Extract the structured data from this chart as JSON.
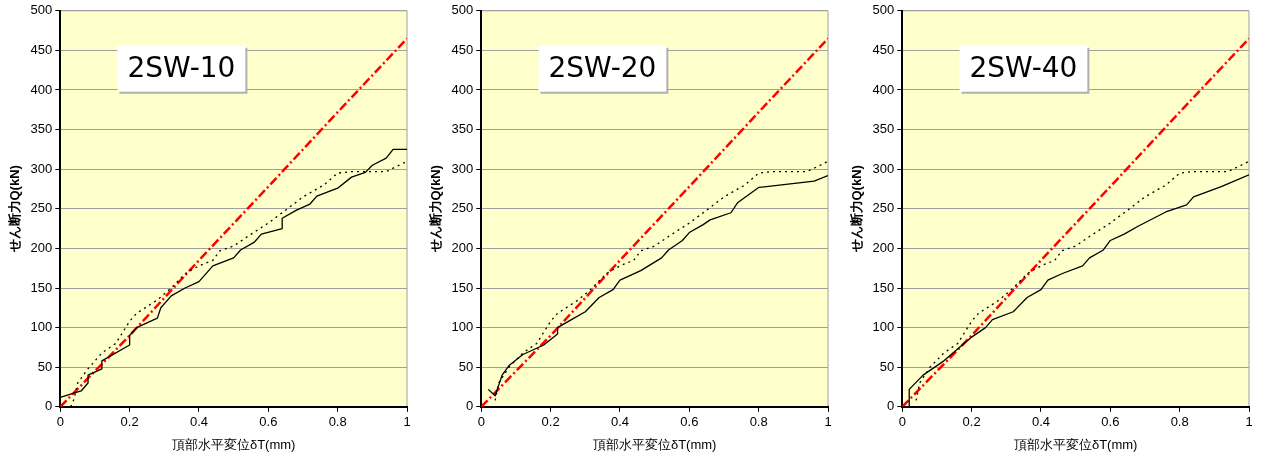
{
  "chart_data": [
    {
      "type": "line",
      "title": "2SW-10",
      "xlabel": "頂部水平変位δT(mm)",
      "ylabel": "せん断力Q(kN)",
      "xlim": [
        0,
        1
      ],
      "xticks": [
        0,
        0.2,
        0.4,
        0.6,
        0.8,
        1
      ],
      "ylim": [
        0,
        500
      ],
      "yticks": [
        0,
        50,
        100,
        150,
        200,
        250,
        300,
        350,
        400,
        450,
        500
      ],
      "grid": "y",
      "marker": "none",
      "series": [
        {
          "color": "#000000",
          "line_style": "solid",
          "x": [
            0,
            0.06,
            0.08,
            0.08,
            0.12,
            0.12,
            0.2,
            0.2,
            0.22,
            0.28,
            0.29,
            0.32,
            0.36,
            0.4,
            0.44,
            0.5,
            0.52,
            0.56,
            0.58,
            0.64,
            0.64,
            0.68,
            0.72,
            0.74,
            0.8,
            0.84,
            0.88,
            0.9,
            0.94,
            0.96,
            1
          ],
          "values": [
            12,
            20,
            30,
            40,
            48,
            58,
            78,
            90,
            100,
            112,
            125,
            140,
            150,
            158,
            178,
            188,
            198,
            208,
            218,
            225,
            238,
            248,
            256,
            266,
            276,
            290,
            296,
            305,
            314,
            325,
            325
          ]
        },
        {
          "color": "#000000",
          "line_style": "dotted",
          "x": [
            0.03,
            0.04,
            0.05,
            0.08,
            0.12,
            0.16,
            0.2,
            0.22,
            0.28,
            0.32,
            0.36,
            0.4,
            0.44,
            0.46,
            0.5,
            0.54,
            0.6,
            0.64,
            0.7,
            0.76,
            0.8,
            0.84,
            0.94,
            1
          ],
          "values": [
            0,
            10,
            30,
            48,
            68,
            80,
            108,
            118,
            135,
            150,
            168,
            178,
            185,
            197,
            203,
            215,
            232,
            245,
            265,
            280,
            295,
            297,
            297,
            310
          ]
        },
        {
          "color": "#ff0000",
          "line_style": "dashed",
          "x": [
            0,
            0.2,
            0.4,
            0.6,
            0.8,
            1
          ],
          "values": [
            0,
            90,
            185,
            278,
            372,
            465
          ]
        }
      ]
    },
    {
      "type": "line",
      "title": "2SW-20",
      "xlabel": "頂部水平変位δT(mm)",
      "ylabel": "せん断力Q(kN)",
      "xlim": [
        0,
        1
      ],
      "xticks": [
        0,
        0.2,
        0.4,
        0.6,
        0.8,
        1
      ],
      "ylim": [
        0,
        500
      ],
      "yticks": [
        0,
        50,
        100,
        150,
        200,
        250,
        300,
        350,
        400,
        450,
        500
      ],
      "grid": "y",
      "marker": "none",
      "series": [
        {
          "color": "#000000",
          "line_style": "solid",
          "x": [
            0.02,
            0.04,
            0.06,
            0.08,
            0.12,
            0.18,
            0.22,
            0.22,
            0.26,
            0.3,
            0.34,
            0.38,
            0.4,
            0.46,
            0.52,
            0.54,
            0.58,
            0.6,
            0.64,
            0.66,
            0.72,
            0.74,
            0.8,
            0.96,
            1
          ],
          "values": [
            22,
            14,
            40,
            52,
            66,
            78,
            92,
            100,
            110,
            120,
            138,
            148,
            160,
            172,
            188,
            198,
            210,
            220,
            230,
            236,
            245,
            258,
            277,
            285,
            292
          ]
        },
        {
          "color": "#000000",
          "line_style": "dotted",
          "x": [
            0.04,
            0.05,
            0.08,
            0.12,
            0.16,
            0.2,
            0.22,
            0.28,
            0.32,
            0.36,
            0.4,
            0.44,
            0.46,
            0.5,
            0.54,
            0.6,
            0.64,
            0.7,
            0.76,
            0.8,
            0.84,
            0.94,
            1
          ],
          "values": [
            8,
            30,
            50,
            68,
            80,
            108,
            118,
            135,
            150,
            168,
            178,
            185,
            197,
            203,
            215,
            232,
            245,
            265,
            280,
            295,
            297,
            297,
            310
          ]
        },
        {
          "color": "#ff0000",
          "line_style": "dashed",
          "x": [
            0,
            0.2,
            0.4,
            0.6,
            0.8,
            1
          ],
          "values": [
            0,
            90,
            185,
            278,
            372,
            465
          ]
        }
      ]
    },
    {
      "type": "line",
      "title": "2SW-40",
      "xlabel": "頂部水平変位δT(mm)",
      "ylabel": "せん断力Q(kN)",
      "xlim": [
        0,
        1
      ],
      "xticks": [
        0,
        0.2,
        0.4,
        0.6,
        0.8,
        1
      ],
      "ylim": [
        0,
        500
      ],
      "yticks": [
        0,
        50,
        100,
        150,
        200,
        250,
        300,
        350,
        400,
        450,
        500
      ],
      "grid": "y",
      "marker": "none",
      "series": [
        {
          "color": "#000000",
          "line_style": "solid",
          "x": [
            0,
            0.02,
            0.02,
            0.06,
            0.12,
            0.2,
            0.24,
            0.26,
            0.32,
            0.36,
            0.4,
            0.42,
            0.46,
            0.52,
            0.54,
            0.58,
            0.6,
            0.64,
            0.68,
            0.76,
            0.82,
            0.84,
            0.92,
            1
          ],
          "values": [
            0,
            0,
            22,
            40,
            58,
            88,
            100,
            110,
            120,
            138,
            148,
            160,
            168,
            178,
            188,
            198,
            210,
            218,
            228,
            246,
            255,
            265,
            278,
            293
          ]
        },
        {
          "color": "#000000",
          "line_style": "dotted",
          "x": [
            0.04,
            0.05,
            0.08,
            0.12,
            0.16,
            0.2,
            0.22,
            0.28,
            0.32,
            0.36,
            0.4,
            0.44,
            0.46,
            0.5,
            0.54,
            0.6,
            0.64,
            0.7,
            0.76,
            0.8,
            0.84,
            0.94,
            1
          ],
          "values": [
            8,
            30,
            50,
            68,
            80,
            108,
            118,
            135,
            150,
            168,
            178,
            185,
            197,
            203,
            215,
            232,
            245,
            265,
            280,
            295,
            297,
            297,
            310
          ]
        },
        {
          "color": "#ff0000",
          "line_style": "dashed",
          "x": [
            0,
            0.2,
            0.4,
            0.6,
            0.8,
            1
          ],
          "values": [
            0,
            90,
            185,
            278,
            372,
            465
          ]
        }
      ]
    }
  ]
}
